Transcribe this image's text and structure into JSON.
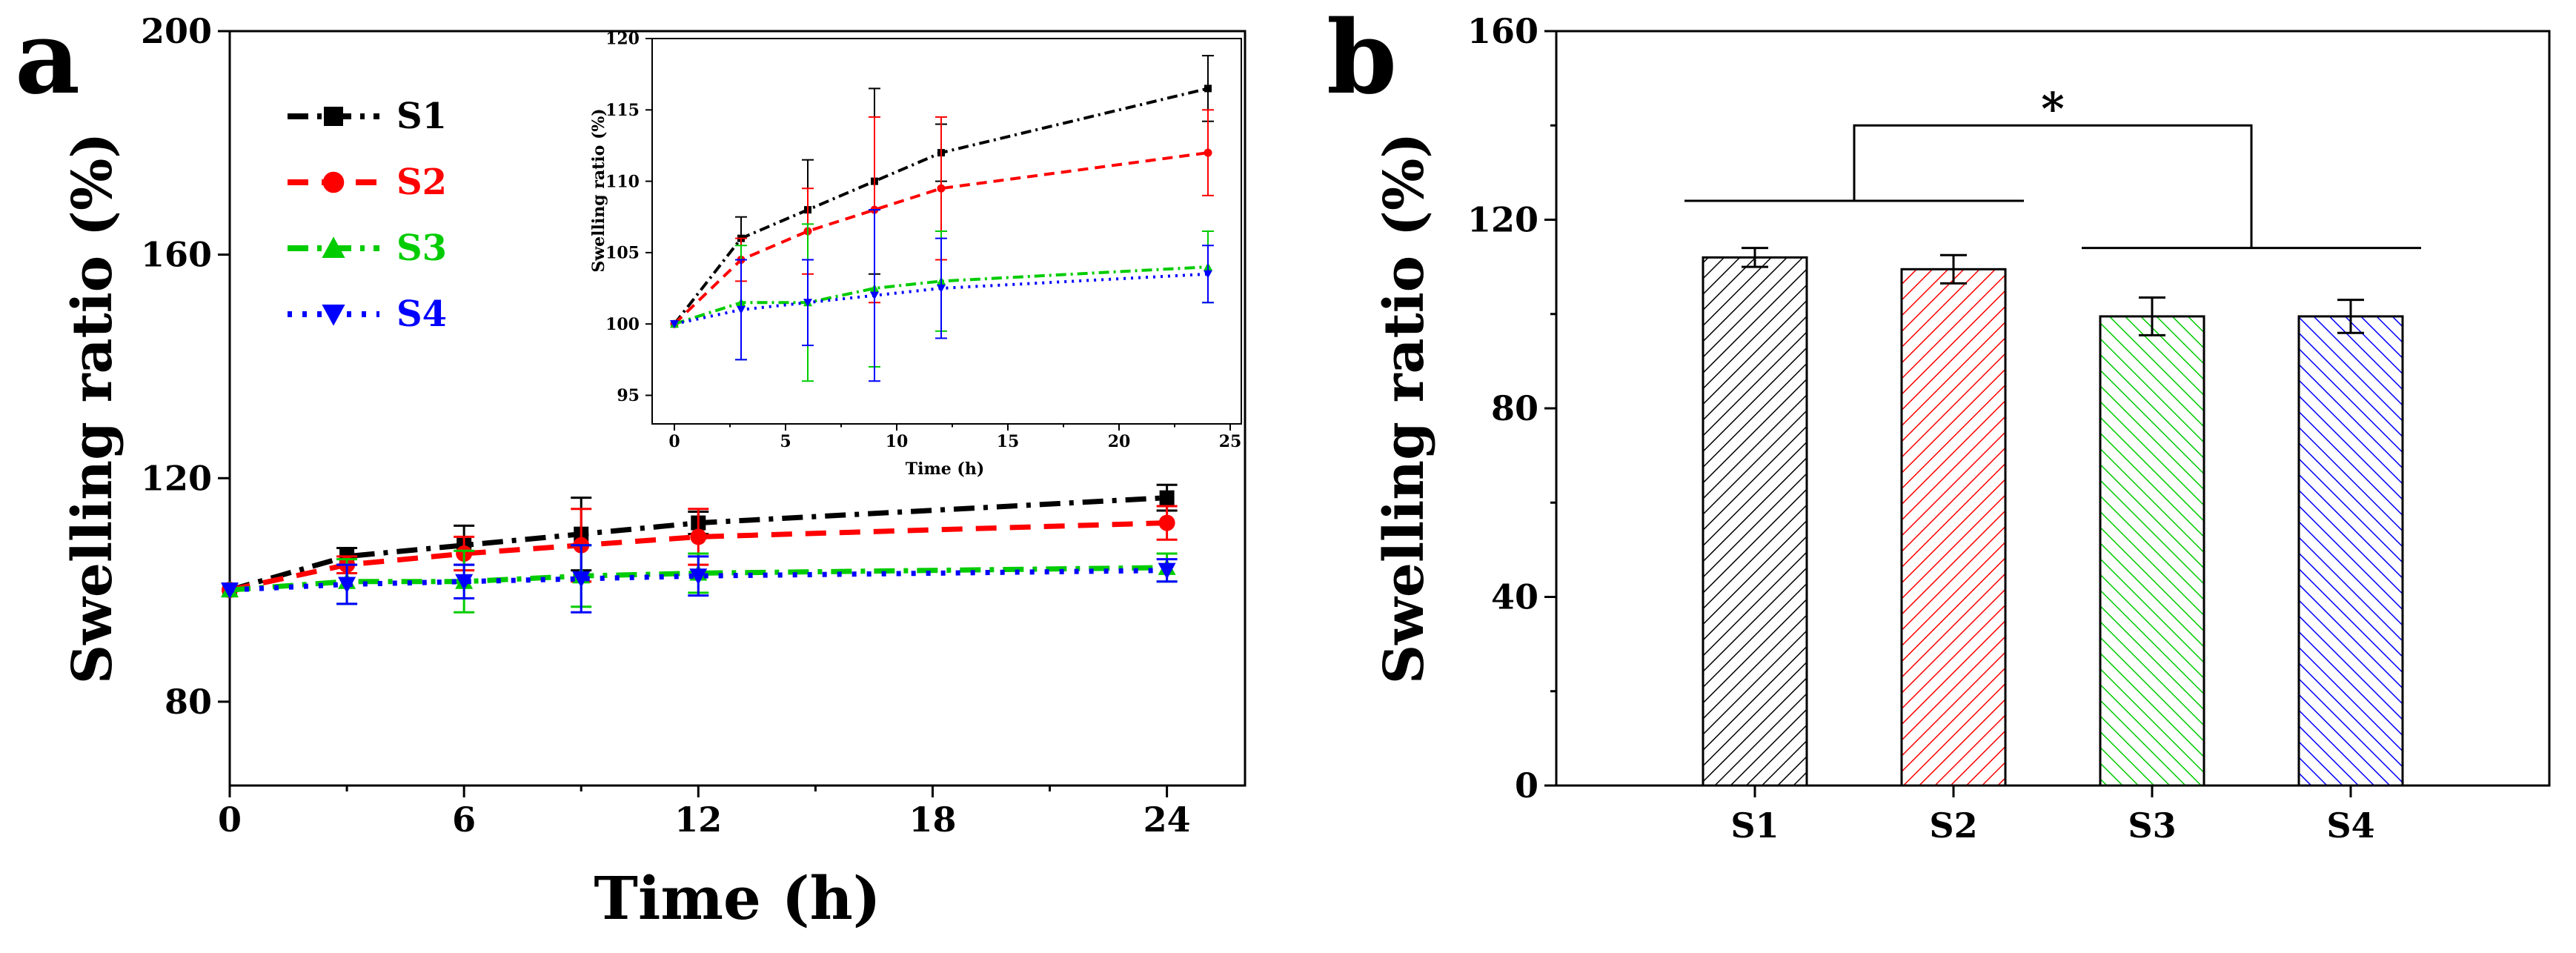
{
  "figure": {
    "panel_a_label": "a",
    "panel_b_label": "b"
  },
  "chart_data": [
    {
      "id": "a-main",
      "type": "line",
      "xlabel": "Time (h)",
      "ylabel": "Swelling ratio (%)",
      "xlim": [
        0,
        26
      ],
      "ylim": [
        65,
        200
      ],
      "xticks": [
        0,
        6,
        12,
        18,
        24
      ],
      "yticks": [
        80,
        120,
        160,
        200
      ],
      "legend_position": "top-left",
      "x": [
        0,
        3,
        6,
        9,
        12,
        24
      ],
      "series": [
        {
          "name": "S1",
          "color": "#000000",
          "marker": "square",
          "dash": "dashdot",
          "values": [
            100,
            106,
            108,
            110,
            112,
            116.5
          ],
          "err": [
            0,
            1.5,
            3.5,
            6.5,
            2,
            2.3
          ]
        },
        {
          "name": "S2",
          "color": "#ff0000",
          "marker": "circle",
          "dash": "dashed",
          "values": [
            100,
            104.5,
            106.5,
            108,
            109.5,
            112
          ],
          "err": [
            0,
            1.5,
            3,
            6.5,
            5,
            3
          ]
        },
        {
          "name": "S3",
          "color": "#00cc00",
          "marker": "triangle-up",
          "dash": "dashdot",
          "values": [
            100,
            101.5,
            101.5,
            102.5,
            103,
            104
          ],
          "err": [
            0,
            4,
            5.5,
            5.5,
            3.5,
            2.5
          ]
        },
        {
          "name": "S4",
          "color": "#0000ff",
          "marker": "triangle-down",
          "dash": "dotted",
          "values": [
            100,
            101,
            101.5,
            102,
            102.5,
            103.5
          ],
          "err": [
            0,
            3.5,
            3,
            6,
            3.5,
            2
          ]
        }
      ]
    },
    {
      "id": "a-inset",
      "type": "line",
      "xlabel": "Time (h)",
      "ylabel": "Swelling ratio (%)",
      "xlim": [
        -1,
        25.5
      ],
      "ylim": [
        93,
        120
      ],
      "xticks": [
        0,
        5,
        10,
        15,
        20,
        25
      ],
      "yticks": [
        95,
        100,
        105,
        110,
        115,
        120
      ],
      "x": [
        0,
        3,
        6,
        9,
        12,
        24
      ],
      "series": [
        {
          "name": "S1",
          "color": "#000000",
          "marker": "square",
          "dash": "dashdot",
          "values": [
            100,
            106,
            108,
            110,
            112,
            116.5
          ],
          "err": [
            0,
            1.5,
            3.5,
            6.5,
            2,
            2.3
          ]
        },
        {
          "name": "S2",
          "color": "#ff0000",
          "marker": "circle",
          "dash": "dashed",
          "values": [
            100,
            104.5,
            106.5,
            108,
            109.5,
            112
          ],
          "err": [
            0,
            1.5,
            3,
            6.5,
            5,
            3
          ]
        },
        {
          "name": "S3",
          "color": "#00cc00",
          "marker": "triangle-up",
          "dash": "dashdot",
          "values": [
            100,
            101.5,
            101.5,
            102.5,
            103,
            104
          ],
          "err": [
            0,
            4,
            5.5,
            5.5,
            3.5,
            2.5
          ]
        },
        {
          "name": "S4",
          "color": "#0000ff",
          "marker": "triangle-down",
          "dash": "dotted",
          "values": [
            100,
            101,
            101.5,
            102,
            102.5,
            103.5
          ],
          "err": [
            0,
            3.5,
            3,
            6,
            3.5,
            2
          ]
        }
      ]
    },
    {
      "id": "b",
      "type": "bar",
      "xlabel": "",
      "ylabel": "Swelling ratio (%)",
      "ylim": [
        0,
        160
      ],
      "yticks": [
        0,
        40,
        80,
        120,
        160
      ],
      "categories": [
        "S1",
        "S2",
        "S3",
        "S4"
      ],
      "values": [
        112,
        109.5,
        99.5,
        99.5
      ],
      "errors": [
        2,
        3,
        4,
        3.5
      ],
      "colors": [
        "#000000",
        "#ff0000",
        "#00cc00",
        "#0000ff"
      ],
      "significance": {
        "label": "*",
        "left_group": [
          "S1",
          "S2"
        ],
        "right_group": [
          "S3",
          "S4"
        ],
        "left_level": 124,
        "right_level": 114,
        "top_level": 140
      }
    }
  ]
}
